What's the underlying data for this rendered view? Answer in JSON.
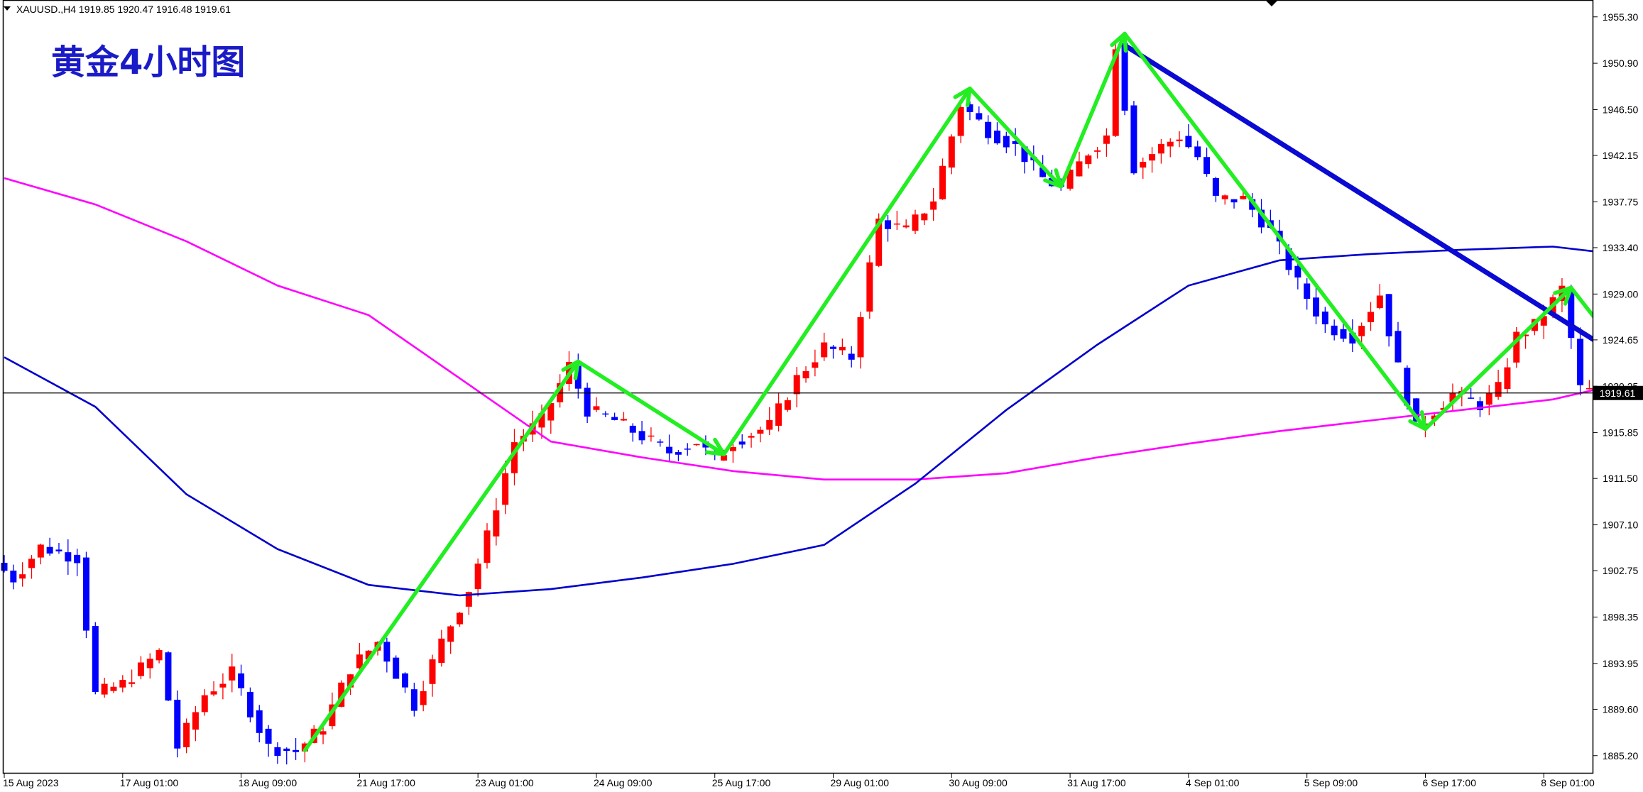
{
  "header": {
    "symbol_info": "XAUUSD.,H4  1919.85 1920.47 1916.48 1919.61",
    "title": "黄金4小时图"
  },
  "current_price_label": "1919.61",
  "chart_data": {
    "type": "candlestick",
    "symbol": "XAUUSD.",
    "timeframe": "H4",
    "ohlc_display": {
      "open": 1919.85,
      "high": 1920.47,
      "low": 1916.48,
      "close": 1919.61
    },
    "ylim": [
      1883.5,
      1956.9
    ],
    "y_ticks": [
      "1955.30",
      "1950.90",
      "1946.50",
      "1942.15",
      "1937.75",
      "1933.40",
      "1929.00",
      "1924.65",
      "1920.25",
      "1915.85",
      "1911.50",
      "1907.10",
      "1902.75",
      "1898.35",
      "1893.95",
      "1889.60",
      "1885.20"
    ],
    "x_labels": [
      {
        "i": 0,
        "label": "15 Aug 2023"
      },
      {
        "i": 13,
        "label": "17 Aug 01:00"
      },
      {
        "i": 26,
        "label": "18 Aug 09:00"
      },
      {
        "i": 39,
        "label": "21 Aug 17:00"
      },
      {
        "i": 52,
        "label": "23 Aug 01:00"
      },
      {
        "i": 65,
        "label": "24 Aug 09:00"
      },
      {
        "i": 78,
        "label": "25 Aug 17:00"
      },
      {
        "i": 91,
        "label": "29 Aug 01:00"
      },
      {
        "i": 104,
        "label": "30 Aug 09:00"
      },
      {
        "i": 117,
        "label": "31 Aug 17:00"
      },
      {
        "i": 130,
        "label": "4 Sep 01:00"
      },
      {
        "i": 143,
        "label": "5 Sep 09:00"
      },
      {
        "i": 156,
        "label": "6 Sep 17:00"
      },
      {
        "i": 169,
        "label": "8 Sep 01:00"
      }
    ],
    "bar_count": 176,
    "colors": {
      "bull": "#ff0000",
      "bear": "#0000ff",
      "ma_fast": "#0000cc",
      "ma_slow": "#ff00ff",
      "trendline": "#0a0ad2",
      "arrows": "#22ee22",
      "grid_line": "#000000"
    },
    "anchors": [
      [
        0,
        1903.5
      ],
      [
        2,
        1902
      ],
      [
        5,
        1905
      ],
      [
        9,
        1904
      ],
      [
        11,
        1891
      ],
      [
        14,
        1892
      ],
      [
        18,
        1895
      ],
      [
        20,
        1886
      ],
      [
        23,
        1891
      ],
      [
        26,
        1893
      ],
      [
        30,
        1886
      ],
      [
        33,
        1885.6
      ],
      [
        36,
        1888
      ],
      [
        39,
        1893.5
      ],
      [
        42,
        1896
      ],
      [
        44,
        1893
      ],
      [
        46,
        1890
      ],
      [
        49,
        1896
      ],
      [
        52,
        1901
      ],
      [
        54,
        1906
      ],
      [
        57,
        1915
      ],
      [
        60,
        1917
      ],
      [
        63,
        1922.2
      ],
      [
        65,
        1918
      ],
      [
        68,
        1917
      ],
      [
        71,
        1915.5
      ],
      [
        74,
        1914
      ],
      [
        77,
        1915
      ],
      [
        79,
        1913.2
      ],
      [
        81,
        1915
      ],
      [
        85,
        1916.5
      ],
      [
        88,
        1921
      ],
      [
        91,
        1924
      ],
      [
        94,
        1923
      ],
      [
        97,
        1936
      ],
      [
        100,
        1935
      ],
      [
        103,
        1938
      ],
      [
        106,
        1947
      ],
      [
        109,
        1944.5
      ],
      [
        112,
        1943
      ],
      [
        115,
        1940
      ],
      [
        117,
        1939
      ],
      [
        120,
        1942.5
      ],
      [
        122,
        1944
      ],
      [
        123,
        1952.8
      ],
      [
        125,
        1941
      ],
      [
        128,
        1943
      ],
      [
        130,
        1944
      ],
      [
        132,
        1942
      ],
      [
        134,
        1938
      ],
      [
        137,
        1938
      ],
      [
        140,
        1935
      ],
      [
        143,
        1930
      ],
      [
        146,
        1926
      ],
      [
        149,
        1925
      ],
      [
        152,
        1929
      ],
      [
        154,
        1922
      ],
      [
        156,
        1916.2
      ],
      [
        158,
        1918
      ],
      [
        160,
        1919.5
      ],
      [
        163,
        1918.5
      ],
      [
        165,
        1920
      ],
      [
        167,
        1925
      ],
      [
        169,
        1926
      ],
      [
        172,
        1929.5
      ],
      [
        174,
        1920
      ],
      [
        176,
        1919.61
      ]
    ],
    "series": [
      {
        "name": "MA fast",
        "points": [
          [
            0,
            1923
          ],
          [
            10,
            1918.3
          ],
          [
            20,
            1910
          ],
          [
            30,
            1904.8
          ],
          [
            40,
            1901.4
          ],
          [
            50,
            1900.4
          ],
          [
            60,
            1901
          ],
          [
            70,
            1902.1
          ],
          [
            80,
            1903.4
          ],
          [
            90,
            1905.2
          ],
          [
            100,
            1911
          ],
          [
            110,
            1918
          ],
          [
            120,
            1924.2
          ],
          [
            130,
            1929.8
          ],
          [
            140,
            1932.2
          ],
          [
            150,
            1932.8
          ],
          [
            160,
            1933.2
          ],
          [
            170,
            1933.5
          ],
          [
            175,
            1933
          ]
        ]
      },
      {
        "name": "MA slow",
        "points": [
          [
            0,
            1940
          ],
          [
            10,
            1937.5
          ],
          [
            20,
            1934
          ],
          [
            30,
            1929.8
          ],
          [
            40,
            1927
          ],
          [
            50,
            1921
          ],
          [
            60,
            1915
          ],
          [
            70,
            1913.5
          ],
          [
            80,
            1912.2
          ],
          [
            90,
            1911.4
          ],
          [
            100,
            1911.4
          ],
          [
            110,
            1912
          ],
          [
            120,
            1913.5
          ],
          [
            130,
            1914.8
          ],
          [
            140,
            1916
          ],
          [
            150,
            1917
          ],
          [
            160,
            1918
          ],
          [
            170,
            1919
          ],
          [
            175,
            1920
          ]
        ]
      }
    ],
    "trendline": [
      [
        123,
        1952.6
      ],
      [
        208.5,
        1906.2
      ]
    ],
    "arrow_path": [
      [
        33,
        1885.7
      ],
      [
        63,
        1922.6
      ],
      [
        79,
        1913.8
      ],
      [
        106,
        1948.5
      ],
      [
        116,
        1939.2
      ],
      [
        123,
        1953.7
      ],
      [
        156,
        1916.2
      ],
      [
        172,
        1929.6
      ],
      [
        193.5,
        1905.8
      ]
    ]
  }
}
